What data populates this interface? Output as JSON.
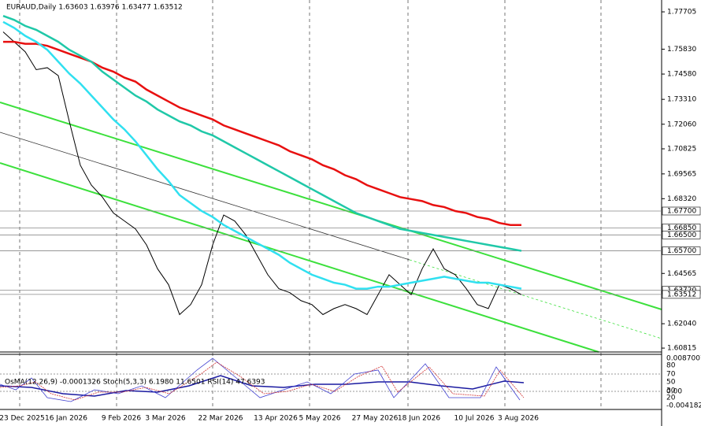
{
  "chart_data": {
    "type": "line",
    "title": "EURAUD,Daily  1.63603 1.63976 1.63477 1.63512",
    "categories": [
      null,
      null,
      "23 Dec 2025",
      null,
      null,
      null,
      "16 Jan 2026",
      null,
      null,
      null,
      null,
      "9 Feb 2026",
      null,
      null,
      null,
      "3 Mar 2026",
      null,
      null,
      null,
      null,
      "22 Mar 2026",
      null,
      null,
      null,
      null,
      "13 Apr 2026",
      null,
      null,
      null,
      "5 May 2026",
      null,
      null,
      null,
      null,
      "27 May 2026",
      null,
      null,
      null,
      "18 Jun 2026",
      null,
      null,
      null,
      null,
      "10 Jul 2026",
      null,
      null,
      null,
      "3 Aug 2026"
    ],
    "series": [
      {
        "color": "#000000",
        "values": [
          1.767,
          1.762,
          1.757,
          1.748,
          1.749,
          1.745,
          1.722,
          1.7,
          1.69,
          1.684,
          1.676,
          1.672,
          1.668,
          1.66,
          1.648,
          1.64,
          1.625,
          1.63,
          1.64,
          1.66,
          1.675,
          1.672,
          1.665,
          1.655,
          1.645,
          1.638,
          1.636,
          1.632,
          1.63,
          1.625,
          1.628,
          1.63,
          1.628,
          1.625,
          1.635,
          1.645,
          1.64,
          1.635,
          1.648,
          1.658,
          1.648,
          1.645,
          1.638,
          1.63,
          1.628,
          1.64,
          1.638,
          1.635
        ]
      },
      {
        "color": "#e81010",
        "values": [
          1.762,
          1.762,
          1.761,
          1.761,
          1.76,
          1.758,
          1.756,
          1.754,
          1.752,
          1.749,
          1.747,
          1.744,
          1.742,
          1.738,
          1.735,
          1.732,
          1.729,
          1.727,
          1.725,
          1.723,
          1.72,
          1.718,
          1.716,
          1.714,
          1.712,
          1.71,
          1.707,
          1.705,
          1.703,
          1.7,
          1.698,
          1.695,
          1.693,
          1.69,
          1.688,
          1.686,
          1.684,
          1.683,
          1.682,
          1.68,
          1.679,
          1.677,
          1.676,
          1.674,
          1.673,
          1.671,
          1.67,
          1.67
        ]
      },
      {
        "color": "#20c8a8",
        "values": [
          1.775,
          1.773,
          1.77,
          1.768,
          1.765,
          1.762,
          1.758,
          1.755,
          1.752,
          1.747,
          1.743,
          1.739,
          1.735,
          1.732,
          1.728,
          1.725,
          1.722,
          1.72,
          1.717,
          1.715,
          1.712,
          1.709,
          1.706,
          1.703,
          1.7,
          1.697,
          1.694,
          1.691,
          1.688,
          1.685,
          1.682,
          1.679,
          1.676,
          1.674,
          1.672,
          1.67,
          1.668,
          1.667,
          1.666,
          1.665,
          1.664,
          1.663,
          1.662,
          1.661,
          1.66,
          1.659,
          1.658,
          1.657
        ]
      },
      {
        "color": "#30e0f0",
        "values": [
          1.772,
          1.769,
          1.765,
          1.762,
          1.758,
          1.752,
          1.746,
          1.741,
          1.735,
          1.729,
          1.723,
          1.718,
          1.712,
          1.705,
          1.698,
          1.692,
          1.685,
          1.681,
          1.677,
          1.674,
          1.67,
          1.667,
          1.664,
          1.661,
          1.658,
          1.655,
          1.651,
          1.648,
          1.645,
          1.643,
          1.641,
          1.64,
          1.638,
          1.638,
          1.639,
          1.639,
          1.64,
          1.641,
          1.642,
          1.643,
          1.644,
          1.643,
          1.642,
          1.641,
          1.641,
          1.64,
          1.639,
          1.638
        ]
      }
    ],
    "ylim": [
      1.6062,
      1.783
    ],
    "yticks": [
      1.77705,
      {
        "value": 1.7583,
        "label": "1.75830"
      },
      {
        "value": 1.7458,
        "label": "1.74580"
      },
      {
        "value": 1.7331,
        "label": "1.73310"
      },
      {
        "value": 1.7206,
        "label": "1.72060"
      },
      1.70825,
      1.69565,
      {
        "value": 1.6832,
        "label": "1.68320"
      },
      1.64565,
      {
        "value": 1.6204,
        "label": "1.62040"
      },
      1.60815
    ],
    "levels": [
      {
        "value": 1.677,
        "label": "1.67700"
      },
      {
        "value": 1.6685,
        "label": "1.66850"
      },
      {
        "value": 1.665,
        "label": "1.66500"
      },
      {
        "value": 1.657,
        "label": "1.65700"
      },
      {
        "value": 1.6372,
        "label": "1.63720"
      },
      1.63512
    ],
    "indicator": {
      "title": "OsMA(12,26,9) -0.0001326 Stoch(5,3,3) 6.1980 11.6501 RSI(14) 47.6393",
      "labels": [
        "0.0087007",
        "80",
        "70",
        "50",
        "30",
        "0.00",
        "20",
        "-0.004182"
      ]
    }
  }
}
